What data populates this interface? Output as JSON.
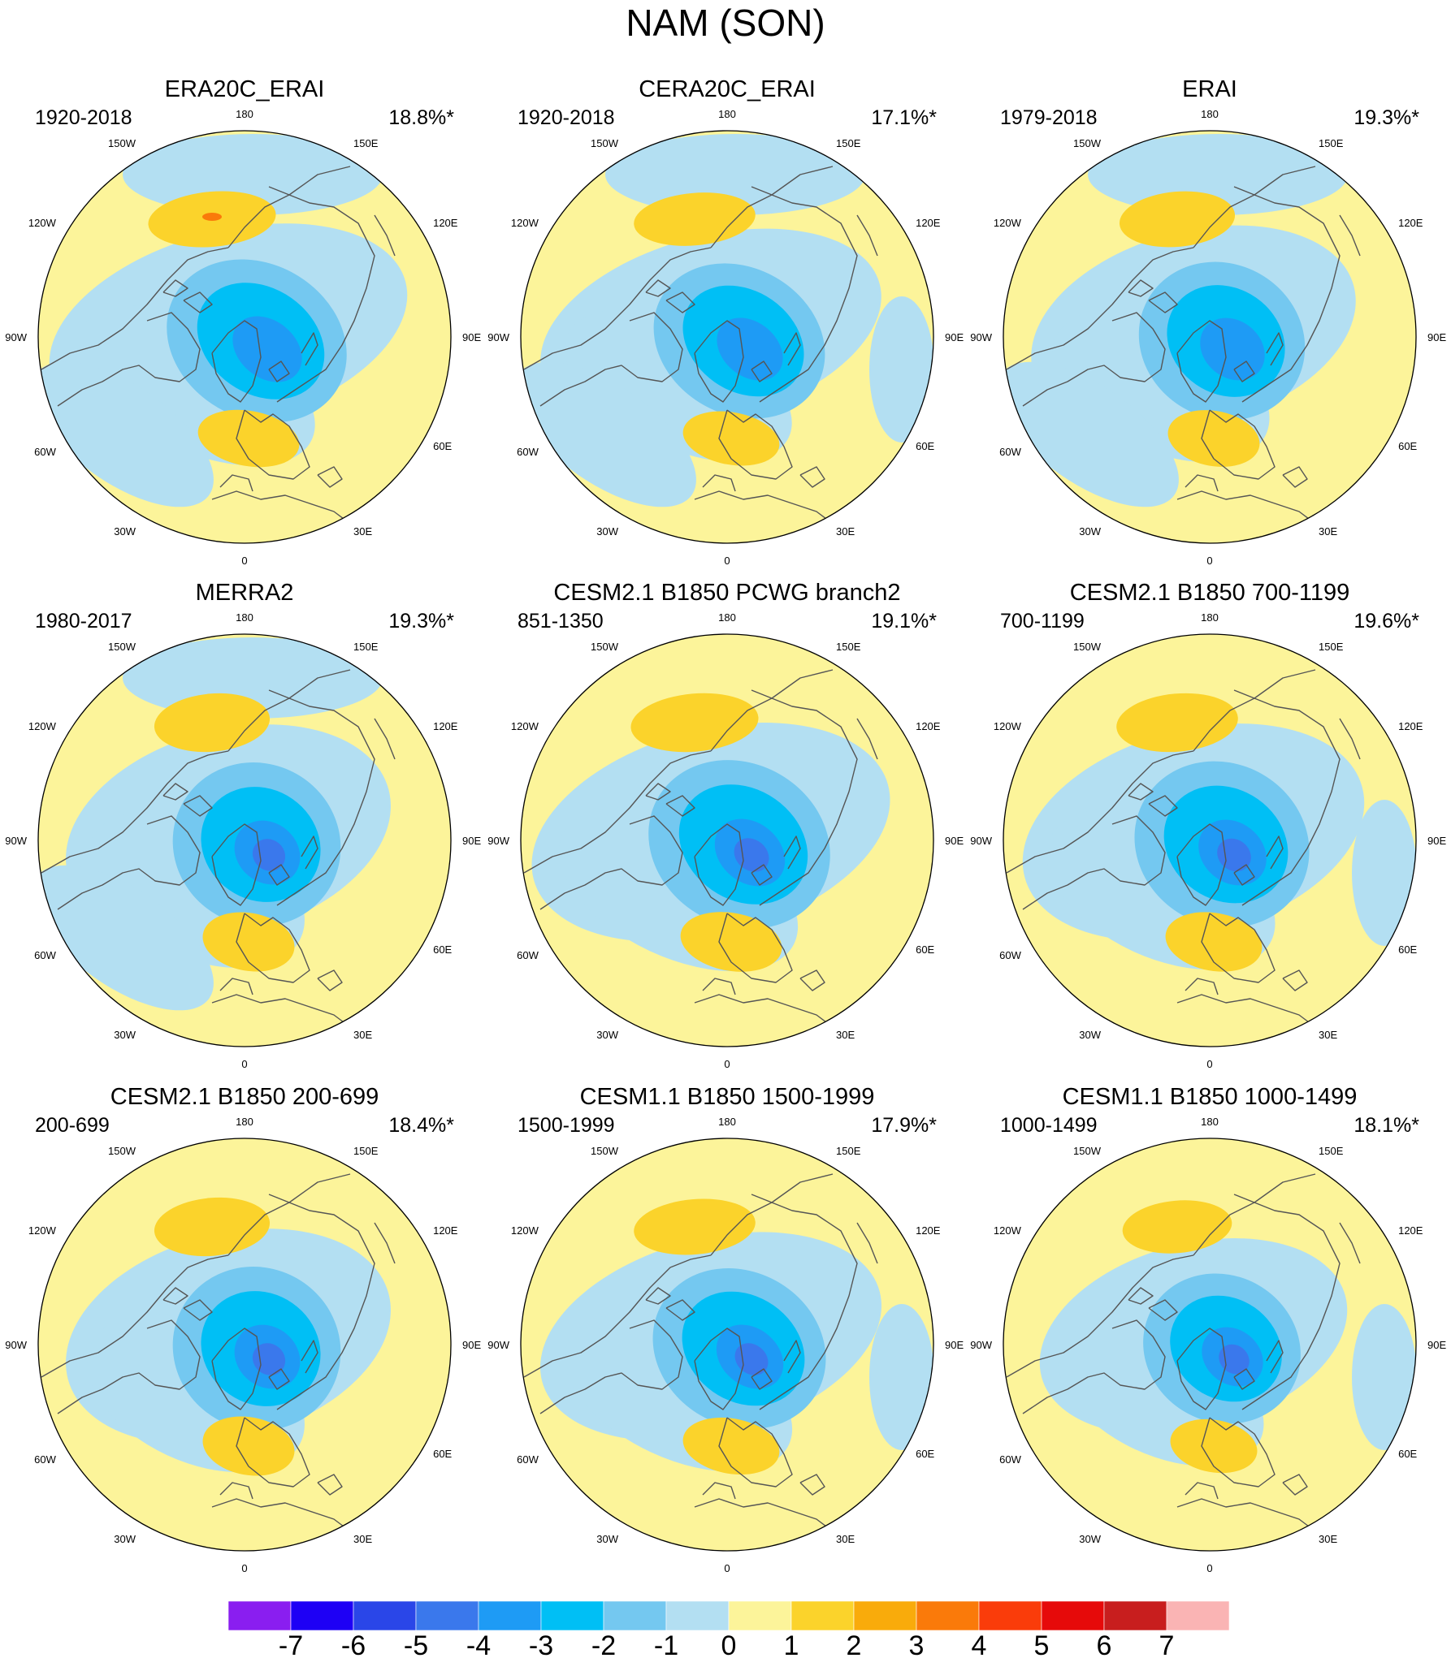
{
  "figure": {
    "title": "NAM (SON)"
  },
  "panels": [
    {
      "title": "ERA20C_ERAI",
      "period": "1920-2018",
      "variance": "18.8%*"
    },
    {
      "title": "CERA20C_ERAI",
      "period": "1920-2018",
      "variance": "17.1%*"
    },
    {
      "title": "ERAI",
      "period": "1979-2018",
      "variance": "19.3%*"
    },
    {
      "title": "MERRA2",
      "period": "1980-2017",
      "variance": "19.3%*"
    },
    {
      "title": "CESM2.1 B1850 PCWG branch2",
      "period": "851-1350",
      "variance": "19.1%*"
    },
    {
      "title": "CESM2.1 B1850 700-1199",
      "period": "700-1199",
      "variance": "19.6%*"
    },
    {
      "title": "CESM2.1 B1850 200-699",
      "period": "200-699",
      "variance": "18.4%*"
    },
    {
      "title": "CESM1.1 B1850 1500-1999",
      "period": "1500-1999",
      "variance": "17.9%*"
    },
    {
      "title": "CESM1.1 B1850 1000-1499",
      "period": "1000-1499",
      "variance": "18.1%*"
    }
  ],
  "longitude_labels": [
    "180",
    "150E",
    "120E",
    "90E",
    "60E",
    "30E",
    "0",
    "30W",
    "60W",
    "90W",
    "120W",
    "150W"
  ],
  "colorbar": {
    "labels": [
      "-7",
      "-6",
      "-5",
      "-4",
      "-3",
      "-2",
      "-1",
      "0",
      "1",
      "2",
      "3",
      "4",
      "5",
      "6",
      "7"
    ],
    "colors": [
      "#8A1EF0",
      "#1E00F5",
      "#2A46E8",
      "#3A78EC",
      "#1E9BF5",
      "#00BFF5",
      "#74C8F0",
      "#B3DFF2",
      "#FCF49A",
      "#FBD32B",
      "#F9AB0B",
      "#FA7A0A",
      "#FA3C0A",
      "#E60A0A",
      "#C81E1E",
      "#FAB4B4"
    ]
  },
  "colors": {
    "ocean_base": "#FCF49A",
    "neg1": "#B3DFF2",
    "neg2": "#74C8F0",
    "neg3": "#00BFF5",
    "neg4": "#1E9BF5",
    "neg5": "#3A78EC",
    "pos1": "#FBD32B",
    "pos2": "#F9AB0B",
    "pos3": "#FA7A0A",
    "coast": "#555555"
  }
}
